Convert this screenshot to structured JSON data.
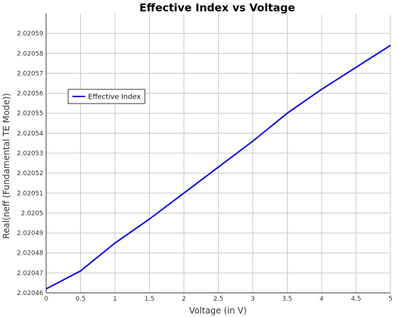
{
  "chart_data": {
    "type": "line",
    "title": "Effective Index vs Voltage",
    "xlabel": "Voltage (in V)",
    "ylabel": "Real(neff (Fundamental TE Mode))",
    "xlim": [
      0,
      5
    ],
    "ylim": [
      2.02046,
      2.0206
    ],
    "x_ticks": [
      "0",
      "0.5",
      "1",
      "1.5",
      "2",
      "2.5",
      "3",
      "3.5",
      "4",
      "4.5",
      "5"
    ],
    "y_ticks": [
      "2.02046",
      "2.02047",
      "2.02048",
      "2.02049",
      "2.0205",
      "2.02051",
      "2.02052",
      "2.02053",
      "2.02054",
      "2.02055",
      "2.02056",
      "2.02057",
      "2.02058",
      "2.02059"
    ],
    "grid": true,
    "legend_position": "left",
    "series": [
      {
        "name": "Effective Index",
        "color": "#0000ee",
        "x": [
          0,
          0.5,
          1,
          1.5,
          2,
          2.5,
          3,
          3.5,
          4,
          4.5,
          5
        ],
        "y": [
          2.020462,
          2.020471,
          2.020485,
          2.020497,
          2.02051,
          2.020523,
          2.020536,
          2.02055,
          2.020562,
          2.020573,
          2.020584
        ]
      }
    ]
  }
}
